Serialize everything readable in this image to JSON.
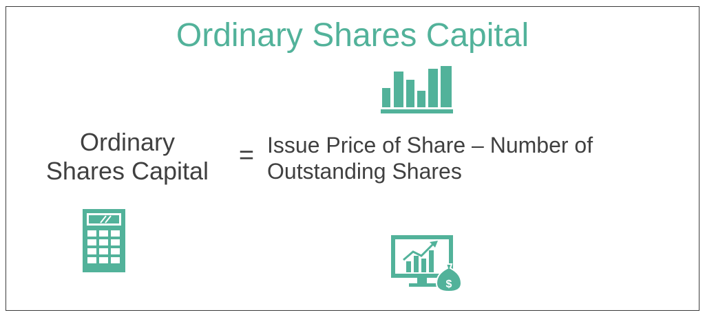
{
  "title": "Ordinary Shares Capital",
  "formula": {
    "lhs_line1": "Ordinary",
    "lhs_line2": "Shares Capital",
    "operator": "=",
    "rhs_line1": "Issue Price of Share – Number of",
    "rhs_line2": "Outstanding Shares"
  },
  "icons": {
    "top": "bar-chart-icon",
    "left": "calculator-icon",
    "right": "monitor-growth-money-bag-icon",
    "money_symbol": "$"
  },
  "colors": {
    "accent": "#52b29a",
    "text": "#404040",
    "border": "#3a3a3a"
  }
}
